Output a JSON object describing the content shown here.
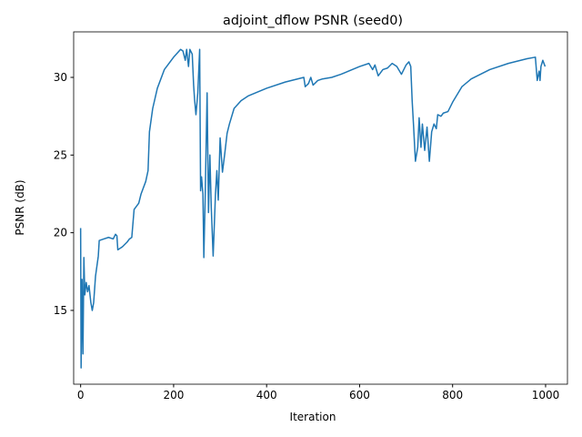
{
  "chart_data": {
    "type": "line",
    "title": "adjoint_dflow PSNR (seed0)",
    "x_label": "Iteration",
    "y_label": "PSNR (dB)",
    "x": [
      0,
      1,
      3,
      5,
      7,
      9,
      12,
      15,
      18,
      22,
      25,
      28,
      32,
      38,
      40,
      50,
      60,
      70,
      75,
      78,
      80,
      90,
      100,
      105,
      110,
      115,
      125,
      130,
      140,
      145,
      148,
      155,
      165,
      180,
      200,
      215,
      220,
      225,
      228,
      232,
      235,
      240,
      243,
      245,
      248,
      252,
      256,
      258,
      260,
      263,
      265,
      268,
      272,
      275,
      278,
      281,
      285,
      290,
      293,
      296,
      300,
      305,
      310,
      315,
      320,
      330,
      345,
      360,
      400,
      440,
      480,
      483,
      490,
      495,
      500,
      510,
      520,
      540,
      560,
      600,
      620,
      628,
      633,
      640,
      650,
      660,
      670,
      680,
      690,
      700,
      706,
      710,
      713,
      716,
      720,
      725,
      728,
      732,
      735,
      740,
      745,
      750,
      755,
      760,
      765,
      768,
      775,
      780,
      790,
      800,
      820,
      840,
      880,
      920,
      960,
      978,
      982,
      986,
      988,
      990,
      994,
      999
    ],
    "values": [
      20.3,
      11.3,
      17,
      12.2,
      18.4,
      16,
      16.8,
      16.2,
      16.6,
      15.5,
      15,
      15.5,
      17.2,
      18.5,
      19.5,
      19.6,
      19.7,
      19.6,
      19.9,
      19.8,
      18.9,
      19.1,
      19.4,
      19.6,
      19.7,
      21.5,
      21.9,
      22.5,
      23.3,
      24,
      26.5,
      28,
      29.3,
      30.5,
      31.3,
      31.8,
      31.7,
      31.1,
      31.8,
      30.7,
      31.8,
      31.5,
      29.5,
      28.6,
      27.6,
      29,
      31.8,
      22.7,
      23.6,
      22.5,
      18.4,
      22.5,
      29,
      21.3,
      25,
      21.6,
      18.5,
      22.5,
      24,
      22.1,
      26.1,
      23.9,
      25.1,
      26.4,
      27,
      28,
      28.5,
      28.8,
      29.3,
      29.7,
      30,
      29.4,
      29.6,
      30,
      29.5,
      29.8,
      29.9,
      30,
      30.2,
      30.7,
      30.9,
      30.5,
      30.8,
      30.1,
      30.5,
      30.6,
      30.9,
      30.7,
      30.2,
      30.8,
      31,
      30.7,
      28.5,
      26.9,
      24.6,
      25.5,
      27.4,
      25.5,
      27,
      25.3,
      26.8,
      24.6,
      26.5,
      27,
      26.7,
      27.6,
      27.5,
      27.7,
      27.8,
      28.4,
      29.4,
      29.9,
      30.5,
      30.9,
      31.2,
      31.3,
      29.8,
      30.4,
      29.8,
      30.7,
      31.1,
      30.7
    ],
    "color": "#1f77b4",
    "xlim": [
      -15,
      1047
    ],
    "ylim": [
      10.25,
      32.93
    ],
    "xticks": [
      0,
      200,
      400,
      600,
      800,
      1000
    ],
    "yticks": [
      15,
      20,
      25,
      30
    ]
  }
}
